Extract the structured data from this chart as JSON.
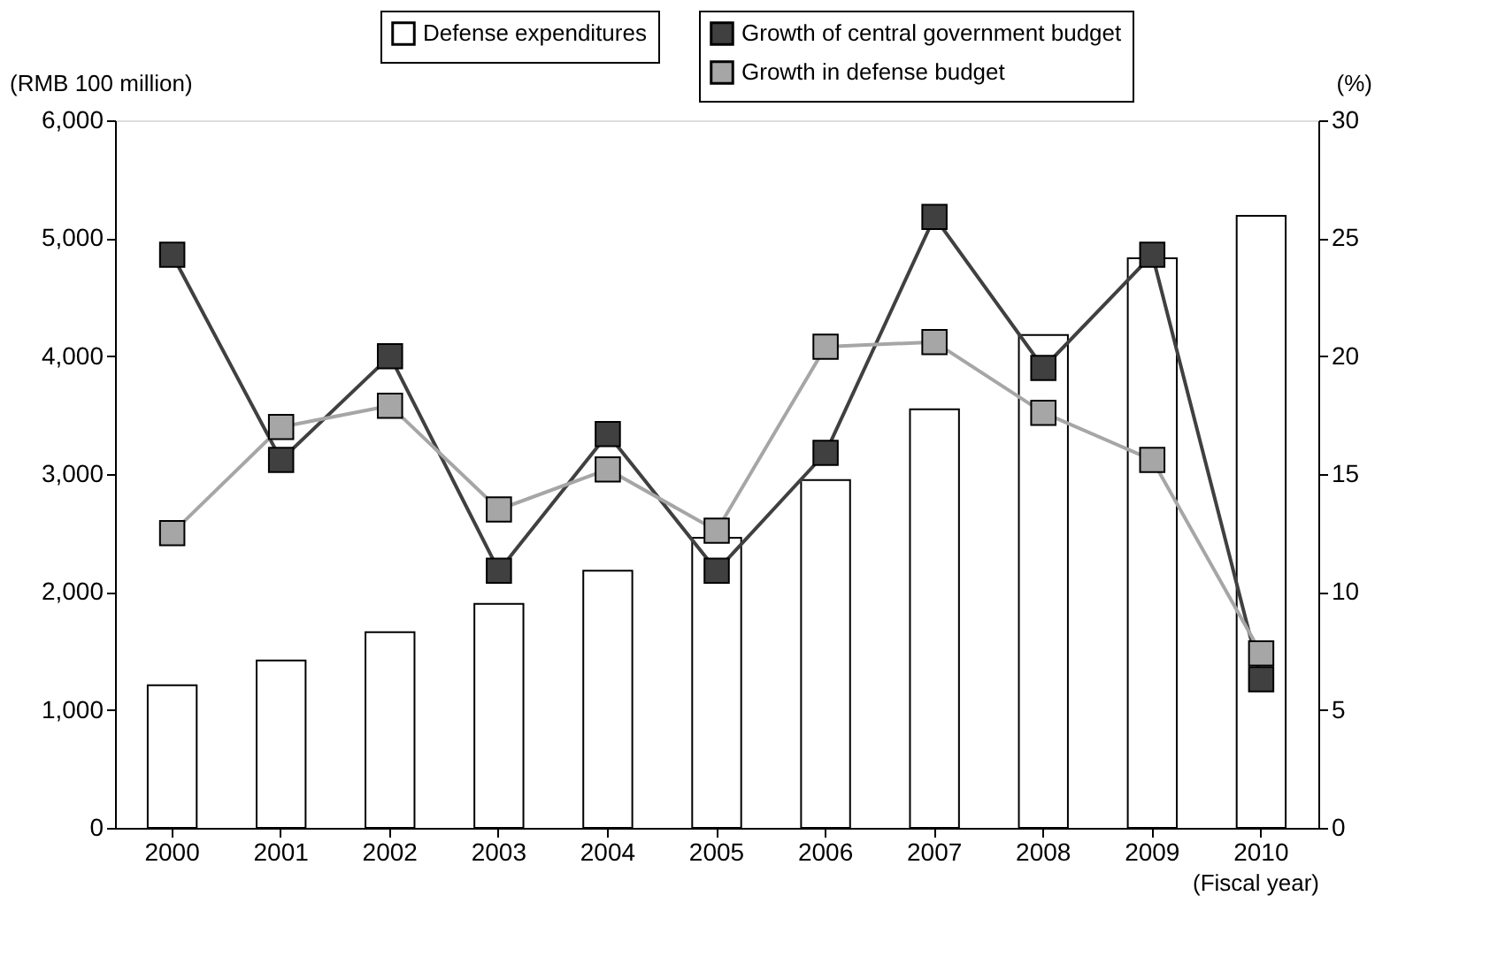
{
  "chart_data": {
    "type": "bar",
    "categories": [
      "2000",
      "2001",
      "2002",
      "2003",
      "2004",
      "2005",
      "2006",
      "2007",
      "2008",
      "2009",
      "2010"
    ],
    "ylabel": "(RMB 100 million)",
    "y2label": "(%)",
    "xlabel": "(Fiscal year)",
    "ylim": [
      0,
      6000
    ],
    "yticks": [
      {
        "value": 0,
        "label": "0"
      },
      {
        "value": 1000,
        "label": "1,000"
      },
      {
        "value": 2000,
        "label": "2,000"
      },
      {
        "value": 3000,
        "label": "3,000"
      },
      {
        "value": 4000,
        "label": "4,000"
      },
      {
        "value": 5000,
        "label": "5,000"
      },
      {
        "value": 6000,
        "label": "6,000"
      }
    ],
    "y2lim": [
      0,
      30
    ],
    "y2ticks": [
      0,
      5,
      10,
      15,
      20,
      25,
      30
    ],
    "grid": false,
    "legend": "top right",
    "marker": "square",
    "series": [
      {
        "name": "Defense expenditures",
        "type": "bar",
        "color": "#ffffff",
        "values": [
          1210,
          1420,
          1660,
          1900,
          2180,
          2460,
          2950,
          3550,
          4180,
          4830,
          5190
        ]
      },
      {
        "name": "Growth of central government budget",
        "type": "line",
        "axis": "y2",
        "color": "#404040",
        "values": [
          24.3,
          15.6,
          20.0,
          10.9,
          16.7,
          10.9,
          15.9,
          25.9,
          19.5,
          24.3,
          6.3
        ]
      },
      {
        "name": "Growth in defense budget",
        "type": "line",
        "axis": "y2",
        "color": "#a6a6a6",
        "values": [
          12.5,
          17.0,
          17.9,
          13.5,
          15.2,
          12.6,
          20.4,
          20.6,
          17.6,
          15.6,
          7.4
        ]
      }
    ]
  }
}
